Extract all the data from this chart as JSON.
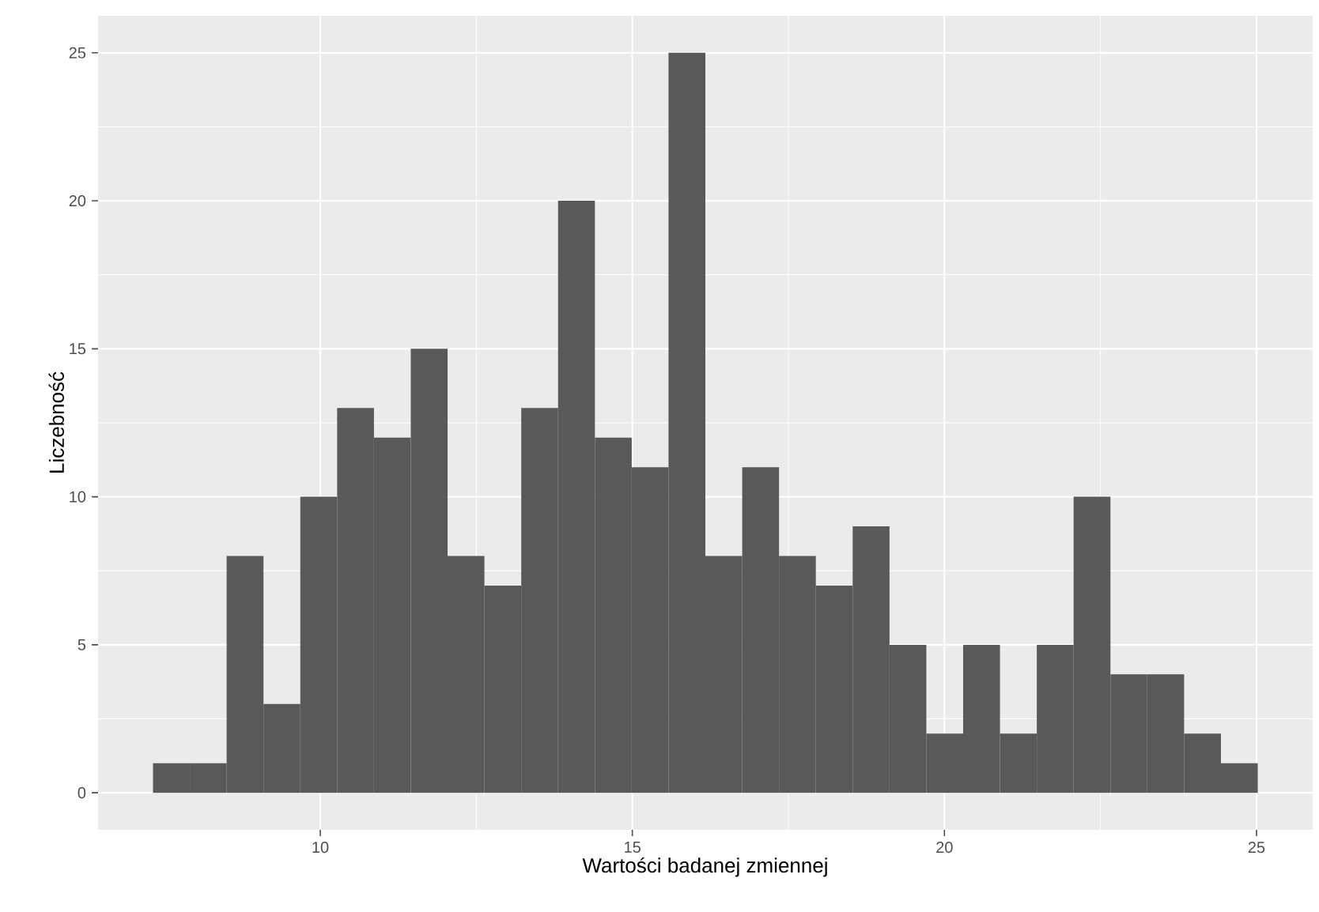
{
  "chart_data": {
    "type": "histogram",
    "xlabel": "Wartości badanej zmiennej",
    "ylabel": "Liczebność",
    "bins": [
      7.32,
      7.91,
      8.5,
      9.09,
      9.68,
      10.27,
      10.86,
      11.45,
      12.04,
      12.63,
      13.22,
      13.81,
      14.4,
      14.99,
      15.58,
      16.17,
      16.76,
      17.35,
      17.94,
      18.53,
      19.12,
      19.71,
      20.3,
      20.89,
      21.48,
      22.07,
      22.66,
      23.25,
      23.84,
      24.43,
      25.02
    ],
    "values": [
      1,
      1,
      8,
      3,
      10,
      13,
      12,
      15,
      8,
      7,
      13,
      20,
      12,
      11,
      25,
      8,
      11,
      8,
      7,
      9,
      5,
      2,
      5,
      2,
      5,
      10,
      4,
      4,
      2,
      1
    ],
    "color": "#595959",
    "xlim": [
      6.44,
      25.9
    ],
    "ylim": [
      -1.25,
      26.25
    ],
    "xticks": [
      10,
      15,
      20,
      25
    ],
    "yticks": [
      0,
      5,
      10,
      15,
      20,
      25
    ],
    "grid": true
  }
}
